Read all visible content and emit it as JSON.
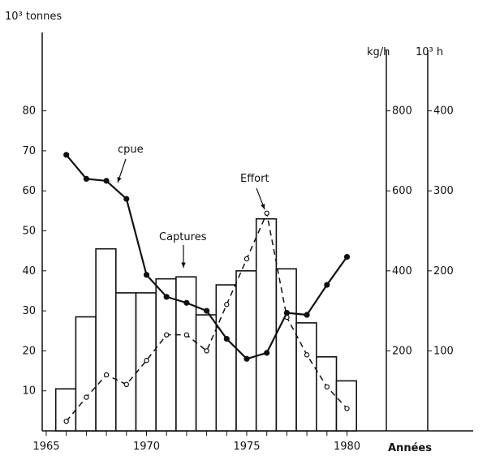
{
  "chart_data": {
    "type": "bar",
    "x_label": "Années",
    "x_ticks": [
      1965,
      1970,
      1975,
      1980
    ],
    "xlim": [
      1965,
      1982
    ],
    "axes": {
      "left": {
        "label": "10³ tonnes",
        "ticks": [
          10,
          20,
          30,
          40,
          50,
          60,
          70,
          80
        ],
        "ylim": [
          0,
          90
        ]
      },
      "right1": {
        "label": "kg/h",
        "ticks": [
          200,
          400,
          600,
          800
        ],
        "ylim": [
          0,
          900
        ]
      },
      "right2": {
        "label": "10³ h",
        "ticks": [
          100,
          200,
          300,
          400
        ],
        "ylim": [
          0,
          450
        ]
      }
    },
    "years": [
      1966,
      1967,
      1968,
      1969,
      1970,
      1971,
      1972,
      1973,
      1974,
      1975,
      1976,
      1977,
      1978,
      1979,
      1980
    ],
    "series": [
      {
        "name": "Captures",
        "kind": "bar",
        "axis": "left",
        "values": [
          10.5,
          28.5,
          45.5,
          34.5,
          34.5,
          38,
          38.5,
          29,
          36.5,
          40,
          53,
          40.5,
          27,
          18.5,
          12.5
        ]
      },
      {
        "name": "cpue",
        "kind": "line-solid-filled-dots",
        "axis": "right1",
        "values": [
          690,
          630,
          625,
          580,
          390,
          335,
          320,
          300,
          230,
          180,
          195,
          295,
          290,
          365,
          435
        ]
      },
      {
        "name": "Effort",
        "kind": "line-dashed-open-dots",
        "axis": "right2",
        "values": [
          12,
          42,
          70,
          58,
          88,
          120,
          120,
          100,
          158,
          215,
          272,
          142,
          95,
          55,
          28
        ]
      }
    ],
    "annotations": [
      {
        "text": "cpue",
        "year": 1969
      },
      {
        "text": "Captures",
        "year": 1972
      },
      {
        "text": "Effort",
        "year": 1976
      }
    ],
    "grid": false,
    "color": "#111111"
  }
}
